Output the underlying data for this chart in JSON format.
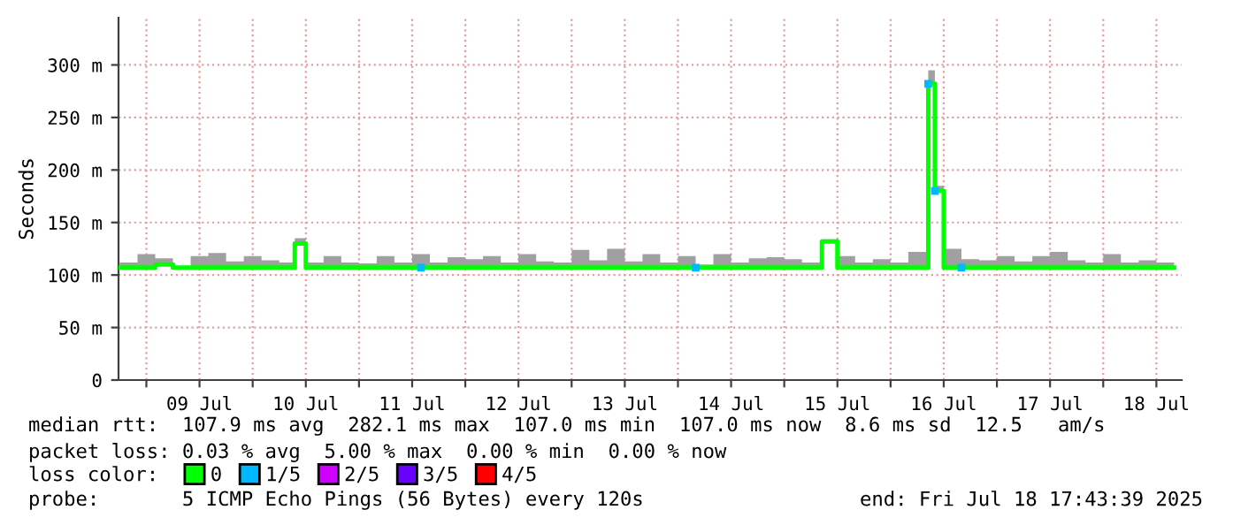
{
  "chart_data": {
    "type": "step",
    "ylabel": "Seconds",
    "legend_title": "loss color:",
    "legend": "bottom",
    "grid": true,
    "xlim": [
      "2025-07-08T17:43",
      "2025-07-18T17:43"
    ],
    "xticks": [
      {
        "value": "2025-07-09T00:00",
        "label": null
      },
      {
        "value": "2025-07-09T12:00",
        "label": "09 Jul"
      },
      {
        "value": "2025-07-10T00:00",
        "label": null
      },
      {
        "value": "2025-07-10T12:00",
        "label": "10 Jul"
      },
      {
        "value": "2025-07-11T00:00",
        "label": null
      },
      {
        "value": "2025-07-11T12:00",
        "label": "11 Jul"
      },
      {
        "value": "2025-07-12T00:00",
        "label": null
      },
      {
        "value": "2025-07-12T12:00",
        "label": "12 Jul"
      },
      {
        "value": "2025-07-13T00:00",
        "label": null
      },
      {
        "value": "2025-07-13T12:00",
        "label": "13 Jul"
      },
      {
        "value": "2025-07-14T00:00",
        "label": null
      },
      {
        "value": "2025-07-14T12:00",
        "label": "14 Jul"
      },
      {
        "value": "2025-07-15T00:00",
        "label": null
      },
      {
        "value": "2025-07-15T12:00",
        "label": "15 Jul"
      },
      {
        "value": "2025-07-16T00:00",
        "label": null
      },
      {
        "value": "2025-07-16T12:00",
        "label": "16 Jul"
      },
      {
        "value": "2025-07-17T00:00",
        "label": null
      },
      {
        "value": "2025-07-17T12:00",
        "label": "17 Jul"
      },
      {
        "value": "2025-07-18T00:00",
        "label": null
      },
      {
        "value": "2025-07-18T12:00",
        "label": "18 Jul"
      }
    ],
    "ylim": [
      0,
      345
    ],
    "yticks": [
      0,
      {
        "value": 50,
        "label": "50 m"
      },
      {
        "value": 100,
        "label": "100 m"
      },
      {
        "value": 150,
        "label": "150 m"
      },
      {
        "value": 200,
        "label": "200 m"
      },
      {
        "value": 250,
        "label": "250 m"
      },
      {
        "value": 300,
        "label": "300 m"
      }
    ],
    "series": [
      {
        "name": "0",
        "color": "#00ff00",
        "x": [
          "2025-07-08T18:00",
          "2025-07-08T22:00",
          "2025-07-09T02:00",
          "2025-07-09T06:00",
          "2025-07-09T10:00",
          "2025-07-09T14:00",
          "2025-07-09T18:00",
          "2025-07-09T22:00",
          "2025-07-10T02:00",
          "2025-07-10T06:00",
          "2025-07-10T09:30",
          "2025-07-10T12:00",
          "2025-07-10T16:00",
          "2025-07-10T20:00",
          "2025-07-11T00:00",
          "2025-07-11T04:00",
          "2025-07-11T08:00",
          "2025-07-11T12:00",
          "2025-07-11T16:00",
          "2025-07-11T20:00",
          "2025-07-12T00:00",
          "2025-07-12T04:00",
          "2025-07-12T08:00",
          "2025-07-12T12:00",
          "2025-07-12T16:00",
          "2025-07-12T20:00",
          "2025-07-13T00:00",
          "2025-07-13T04:00",
          "2025-07-13T08:00",
          "2025-07-13T12:00",
          "2025-07-13T16:00",
          "2025-07-13T20:00",
          "2025-07-14T00:00",
          "2025-07-14T04:00",
          "2025-07-14T08:00",
          "2025-07-14T12:00",
          "2025-07-14T16:00",
          "2025-07-14T20:00",
          "2025-07-15T00:00",
          "2025-07-15T04:00",
          "2025-07-15T08:30",
          "2025-07-15T12:00",
          "2025-07-15T16:00",
          "2025-07-15T20:00",
          "2025-07-16T00:00",
          "2025-07-16T04:00",
          "2025-07-16T08:30",
          "2025-07-16T10:00",
          "2025-07-16T12:00",
          "2025-07-16T16:00",
          "2025-07-16T20:00",
          "2025-07-17T00:00",
          "2025-07-17T04:00",
          "2025-07-17T08:00",
          "2025-07-17T12:00",
          "2025-07-17T16:00",
          "2025-07-17T20:00",
          "2025-07-18T00:00",
          "2025-07-18T04:00",
          "2025-07-18T08:00",
          "2025-07-18T12:00",
          "2025-07-18T16:00"
        ],
        "values": [
          107,
          107,
          110,
          107,
          107,
          107,
          107,
          107,
          107,
          107,
          130,
          107,
          107,
          107,
          107,
          107,
          107,
          107,
          107,
          107,
          107,
          107,
          107,
          107,
          107,
          107,
          107,
          107,
          107,
          107,
          107,
          107,
          107,
          107,
          107,
          107,
          107,
          107,
          107,
          107,
          132,
          107,
          107,
          107,
          107,
          107,
          282,
          180,
          107,
          107,
          107,
          107,
          107,
          107,
          107,
          107,
          107,
          107,
          107,
          107,
          107,
          107
        ],
        "lower": [
          107,
          107,
          110,
          107,
          107,
          107,
          107,
          107,
          107,
          107,
          130,
          107,
          107,
          107,
          107,
          107,
          107,
          107,
          107,
          107,
          107,
          107,
          107,
          107,
          107,
          107,
          107,
          107,
          107,
          107,
          107,
          107,
          107,
          107,
          107,
          107,
          107,
          107,
          107,
          107,
          132,
          107,
          107,
          107,
          107,
          107,
          282,
          180,
          107,
          107,
          107,
          107,
          107,
          107,
          107,
          107,
          107,
          107,
          107,
          107,
          107,
          107
        ],
        "upper": [
          112,
          120,
          116,
          108,
          118,
          121,
          113,
          118,
          114,
          112,
          135,
          112,
          118,
          112,
          111,
          118,
          112,
          120,
          112,
          117,
          115,
          118,
          112,
          120,
          113,
          112,
          124,
          114,
          125,
          113,
          120,
          112,
          118,
          110,
          120,
          112,
          116,
          117,
          115,
          112,
          134,
          118,
          112,
          115,
          112,
          122,
          295,
          185,
          125,
          115,
          114,
          118,
          113,
          118,
          122,
          114,
          112,
          120,
          112,
          114,
          112,
          111
        ]
      },
      {
        "name": "1/5",
        "type": "scatter",
        "marker": "square",
        "color": "#00b8ff",
        "x": [
          "2025-07-11T14:00",
          "2025-07-14T04:00",
          "2025-07-16T08:30",
          "2025-07-16T10:00",
          "2025-07-16T16:00"
        ],
        "values": [
          107,
          107,
          282,
          180,
          107
        ]
      },
      {
        "name": "2/5",
        "type": "scatter",
        "marker": "square",
        "color": "#d000ff"
      },
      {
        "name": "3/5",
        "type": "scatter",
        "marker": "square",
        "color": "#6a00ff"
      },
      {
        "name": "4/5",
        "type": "scatter",
        "marker": "square",
        "color": "#ff0000"
      }
    ],
    "annotations": [
      "median rtt:  107.9 ms avg  282.1 ms max  107.0 ms min  107.0 ms now  8.6 ms sd  12.5   am/s",
      "packet loss: 0.03 % avg  5.00 % max  0.00 % min  0.00 % now",
      "probe:       5 ICMP Echo Pings (56 Bytes) every 120s",
      "end: Fri Jul 18 17:43:39 2025"
    ]
  }
}
